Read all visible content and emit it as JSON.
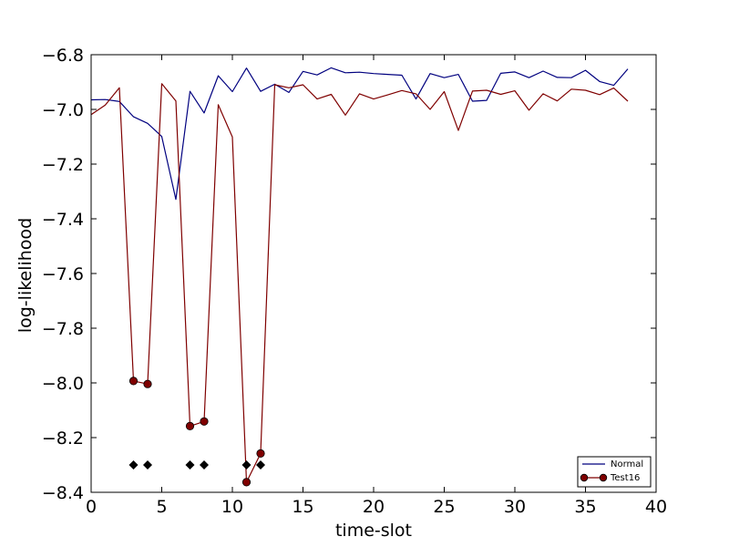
{
  "chart_data": {
    "type": "line",
    "title": "",
    "xlabel": "time-slot",
    "ylabel": "log-likelihood",
    "xlim": [
      0,
      40
    ],
    "ylim": [
      -8.4,
      -6.8
    ],
    "xticks": [
      0,
      5,
      10,
      15,
      20,
      25,
      30,
      35,
      40
    ],
    "yticks": [
      -6.8,
      -7.0,
      -7.2,
      -7.4,
      -7.6,
      -7.8,
      -8.0,
      -8.2,
      -8.4
    ],
    "xtick_labels": [
      "0",
      "5",
      "10",
      "15",
      "20",
      "25",
      "30",
      "35",
      "40"
    ],
    "ytick_labels": [
      "−6.8",
      "−7.0",
      "−7.2",
      "−7.4",
      "−7.6",
      "−7.8",
      "−8.0",
      "−8.2",
      "−8.4"
    ],
    "grid": false,
    "legend_position": "bottom-right",
    "series": [
      {
        "name": "Normal",
        "color": "#00007f",
        "marker": "none",
        "x": [
          0,
          1,
          2,
          3,
          4,
          5,
          6,
          7,
          8,
          9,
          10,
          11,
          12,
          13,
          14,
          15,
          16,
          17,
          18,
          19,
          20,
          21,
          22,
          23,
          24,
          25,
          26,
          27,
          28,
          29,
          30,
          31,
          32,
          33,
          34,
          35,
          36,
          37,
          38
        ],
        "y": [
          -6.965,
          -6.964,
          -6.971,
          -7.027,
          -7.051,
          -7.099,
          -7.329,
          -6.934,
          -7.013,
          -6.877,
          -6.935,
          -6.849,
          -6.934,
          -6.908,
          -6.938,
          -6.861,
          -6.874,
          -6.848,
          -6.866,
          -6.864,
          -6.869,
          -6.872,
          -6.875,
          -6.962,
          -6.869,
          -6.884,
          -6.872,
          -6.97,
          -6.967,
          -6.868,
          -6.863,
          -6.884,
          -6.86,
          -6.883,
          -6.884,
          -6.857,
          -6.898,
          -6.912,
          -6.852
        ]
      },
      {
        "name": "Test16",
        "color": "#7f0000",
        "marker": "circle-at-anomalies",
        "x": [
          0,
          1,
          2,
          3,
          4,
          5,
          6,
          7,
          8,
          9,
          10,
          11,
          12,
          13,
          14,
          15,
          16,
          17,
          18,
          19,
          20,
          21,
          22,
          23,
          24,
          25,
          26,
          27,
          28,
          29,
          30,
          31,
          32,
          33,
          34,
          35,
          36,
          37,
          38
        ],
        "y": [
          -7.019,
          -6.984,
          -6.921,
          -7.993,
          -8.004,
          -6.906,
          -6.969,
          -8.158,
          -8.141,
          -6.983,
          -7.101,
          -8.363,
          -8.258,
          -6.91,
          -6.921,
          -6.91,
          -6.962,
          -6.945,
          -7.021,
          -6.943,
          -6.962,
          -6.947,
          -6.931,
          -6.943,
          -7.0,
          -6.935,
          -7.077,
          -6.933,
          -6.93,
          -6.945,
          -6.932,
          -7.003,
          -6.943,
          -6.969,
          -6.926,
          -6.93,
          -6.946,
          -6.922,
          -6.97
        ]
      }
    ],
    "anomaly_markers": {
      "marker": "diamond",
      "color": "#000000",
      "x": [
        3,
        4,
        7,
        8,
        11,
        12
      ],
      "y": [
        -8.3,
        -8.3,
        -8.3,
        -8.3,
        -8.3,
        -8.3
      ]
    }
  }
}
